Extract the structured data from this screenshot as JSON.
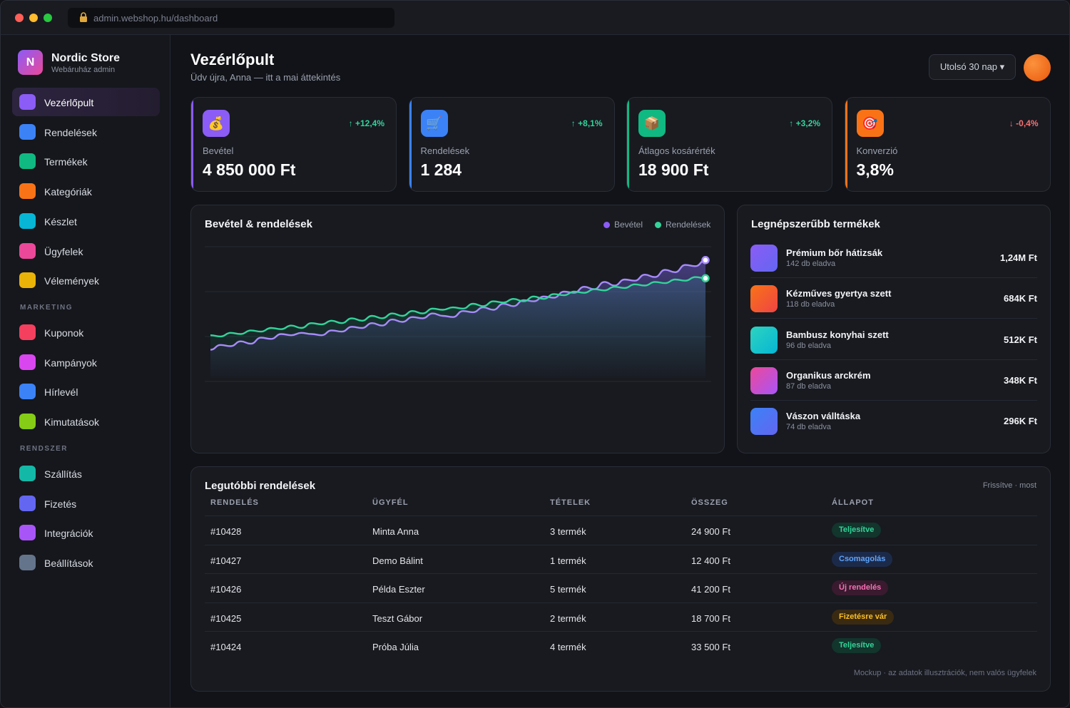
{
  "browser": {
    "url": "admin.webshop.hu/dashboard"
  },
  "brand": {
    "name": "Nordic Store",
    "subtitle": "Webáruház admin",
    "logo_letter": "N"
  },
  "sidebar": {
    "items": [
      {
        "label": "Vezérlőpult",
        "color": "#8b5cf6",
        "active": true
      },
      {
        "label": "Rendelések",
        "color": "#3b82f6"
      },
      {
        "label": "Termékek",
        "color": "#10b981"
      },
      {
        "label": "Kategóriák",
        "color": "#f97316"
      },
      {
        "label": "Készlet",
        "color": "#06b6d4"
      },
      {
        "label": "Ügyfelek",
        "color": "#ec4899"
      },
      {
        "label": "Vélemények",
        "color": "#eab308"
      }
    ],
    "marketing_title": "MARKETING",
    "marketing": [
      {
        "label": "Kuponok",
        "color": "#f43f5e"
      },
      {
        "label": "Kampányok",
        "color": "#d946ef"
      },
      {
        "label": "Hírlevél",
        "color": "#3b82f6"
      },
      {
        "label": "Kimutatások",
        "color": "#84cc16"
      }
    ],
    "system_title": "RENDSZER",
    "system": [
      {
        "label": "Szállítás",
        "color": "#14b8a6"
      },
      {
        "label": "Fizetés",
        "color": "#6366f1"
      },
      {
        "label": "Integrációk",
        "color": "#a855f7"
      },
      {
        "label": "Beállítások",
        "color": "#64748b"
      }
    ]
  },
  "header": {
    "title": "Vezérlőpult",
    "subtitle": "Üdv újra, Anna — itt a mai áttekintés",
    "range": "Utolsó 30 nap ▾"
  },
  "kpis": [
    {
      "label": "Bevétel",
      "value": "4 850 000 Ft",
      "change": "↑ +12,4%",
      "trend": "up",
      "icon": "money-bag-icon",
      "glyph": "💰",
      "color": "#8b5cf6"
    },
    {
      "label": "Rendelések",
      "value": "1 284",
      "change": "↑ +8,1%",
      "trend": "up",
      "icon": "cart-icon",
      "glyph": "🛒",
      "color": "#3b82f6"
    },
    {
      "label": "Átlagos kosárérték",
      "value": "18 900 Ft",
      "change": "↑ +3,2%",
      "trend": "up",
      "icon": "package-icon",
      "glyph": "📦",
      "color": "#10b981"
    },
    {
      "label": "Konverzió",
      "value": "3,8%",
      "change": "↓ -0,4%",
      "trend": "down",
      "icon": "target-icon",
      "glyph": "🎯",
      "color": "#f97316"
    }
  ],
  "chart_panel": {
    "title": "Bevétel & rendelések",
    "legend": [
      "Bevétel",
      "Rendelések"
    ]
  },
  "chart_data": {
    "type": "area",
    "title": "Bevétel & rendelések",
    "series": [
      {
        "name": "Bevétel",
        "color": "#a78bfa",
        "values": [
          22,
          26,
          25,
          29,
          27,
          32,
          31,
          35,
          34,
          36,
          35,
          34,
          38,
          37,
          41,
          40,
          44,
          42,
          47,
          45,
          49,
          48,
          52,
          50,
          49,
          54,
          53,
          57,
          55,
          60,
          58,
          63,
          62,
          66,
          65,
          70,
          69,
          74,
          72,
          78,
          75,
          80,
          79,
          84,
          82,
          88,
          86,
          92,
          91,
          96
        ]
      },
      {
        "name": "Rendelések",
        "color": "#34d399",
        "values": [
          34,
          33,
          36,
          35,
          38,
          37,
          40,
          39,
          42,
          40,
          44,
          43,
          46,
          44,
          48,
          46,
          50,
          48,
          52,
          50,
          54,
          52,
          56,
          55,
          57,
          56,
          60,
          58,
          62,
          61,
          64,
          62,
          66,
          64,
          68,
          67,
          70,
          69,
          72,
          71,
          74,
          73,
          76,
          75,
          78,
          77,
          80,
          79,
          82,
          81
        ]
      }
    ]
  },
  "top_products": {
    "title": "Legnépszerűbb termékek",
    "items": [
      {
        "name": "Prémium bőr hátizsák",
        "sold": "142 db eladva",
        "value": "1,24M Ft",
        "c1": "#8b5cf6",
        "c2": "#6366f1"
      },
      {
        "name": "Kézműves gyertya szett",
        "sold": "118 db eladva",
        "value": "684K Ft",
        "c1": "#f97316",
        "c2": "#ef4444"
      },
      {
        "name": "Bambusz konyhai szett",
        "sold": "96 db eladva",
        "value": "512K Ft",
        "c1": "#2dd4bf",
        "c2": "#06b6d4"
      },
      {
        "name": "Organikus arckrém",
        "sold": "87 db eladva",
        "value": "348K Ft",
        "c1": "#ec4899",
        "c2": "#a855f7"
      },
      {
        "name": "Vászon válltáska",
        "sold": "74 db eladva",
        "value": "296K Ft",
        "c1": "#3b82f6",
        "c2": "#6366f1"
      }
    ]
  },
  "orders": {
    "title": "Legutóbbi rendelések",
    "updated": "Frissítve · most",
    "columns": [
      "RENDELÉS",
      "ÜGYFÉL",
      "TÉTELEK",
      "ÖSSZEG",
      "ÁLLAPOT"
    ],
    "rows": [
      {
        "id": "#10428",
        "customer": "Minta Anna",
        "items": "3 termék",
        "total": "24 900 Ft",
        "status": "Teljesítve",
        "sbg": "#12352c",
        "sfg": "#34d399"
      },
      {
        "id": "#10427",
        "customer": "Demo Bálint",
        "items": "1 termék",
        "total": "12 400 Ft",
        "status": "Csomagolás",
        "sbg": "#1c2a4a",
        "sfg": "#60a5fa"
      },
      {
        "id": "#10426",
        "customer": "Példa Eszter",
        "items": "5 termék",
        "total": "41 200 Ft",
        "status": "Új rendelés",
        "sbg": "#3a1a2e",
        "sfg": "#f472b6"
      },
      {
        "id": "#10425",
        "customer": "Teszt Gábor",
        "items": "2 termék",
        "total": "18 700 Ft",
        "status": "Fizetésre vár",
        "sbg": "#3a2a12",
        "sfg": "#fbbf24"
      },
      {
        "id": "#10424",
        "customer": "Próba Júlia",
        "items": "4 termék",
        "total": "33 500 Ft",
        "status": "Teljesítve",
        "sbg": "#12352c",
        "sfg": "#34d399"
      }
    ],
    "footnote": "Mockup · az adatok illusztrációk, nem valós ügyfelek"
  }
}
